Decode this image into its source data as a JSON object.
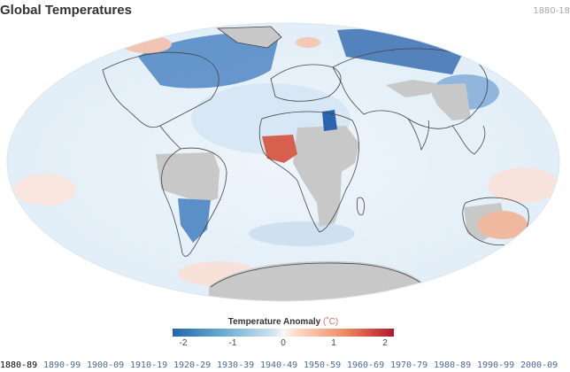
{
  "title": "Global Temperatures",
  "current_period": "1880-18",
  "legend": {
    "title": "Temperature Anomaly",
    "unit": "(˚C)",
    "ticks": [
      "-2",
      "-1",
      "0",
      "1",
      "2"
    ],
    "colors": {
      "cold": "#2166ac",
      "neutral": "#f7f7f7",
      "warm": "#b2182b",
      "no_data": "#c8c8c8"
    }
  },
  "decades": [
    "1880-89",
    "1890-99",
    "1900-09",
    "1910-19",
    "1920-29",
    "1930-39",
    "1940-49",
    "1950-59",
    "1960-69",
    "1970-79",
    "1980-89",
    "1990-99",
    "2000-09"
  ],
  "selected_decade": "1880-89",
  "map": {
    "projection": "mollweide",
    "data_regions": [
      "no-data-greenland",
      "no-data-antarctica",
      "no-data-south-america",
      "no-data-africa",
      "no-data-australia-west",
      "warm-west-africa",
      "cold-north-atlantic",
      "cold-siberia",
      "cold-south-america",
      "warm-australia"
    ]
  }
}
